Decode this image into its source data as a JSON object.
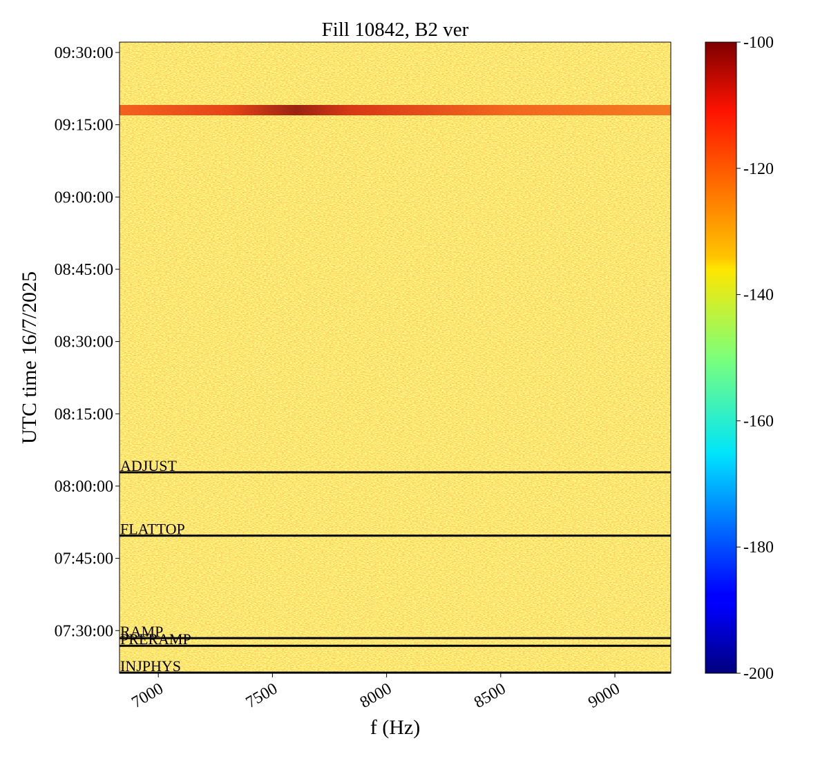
{
  "chart_data": {
    "type": "spectrogram",
    "title": "Fill 10842, B2 ver",
    "xlabel": "f (Hz)",
    "ylabel": "UTC time 16/7/2025",
    "xlim": [
      6830,
      9245
    ],
    "xticks": [
      7000,
      7500,
      8000,
      8500,
      9000
    ],
    "ylim": [
      26469,
      34329
    ],
    "yticks": [
      {
        "value": 27000,
        "label": "07:30:00"
      },
      {
        "value": 27900,
        "label": "07:45:00"
      },
      {
        "value": 28800,
        "label": "08:00:00"
      },
      {
        "value": 29700,
        "label": "08:15:00"
      },
      {
        "value": 30600,
        "label": "08:30:00"
      },
      {
        "value": 31500,
        "label": "08:45:00"
      },
      {
        "value": 32400,
        "label": "09:00:00"
      },
      {
        "value": 33300,
        "label": "09:15:00"
      },
      {
        "value": 34200,
        "label": "09:30:00"
      }
    ],
    "annotations": [
      {
        "label": "ADJUST",
        "value": 28971
      },
      {
        "label": "FLATTOP",
        "value": 28183
      },
      {
        "label": "RAMP",
        "value": 26906
      },
      {
        "label": "PRERAMP",
        "value": 26811
      },
      {
        "label": "INJPHYS",
        "value": 26477
      }
    ],
    "colormap": "jet",
    "clim": [
      -200,
      -100
    ],
    "cticks": [
      -200,
      -180,
      -160,
      -140,
      -120,
      -100
    ]
  }
}
